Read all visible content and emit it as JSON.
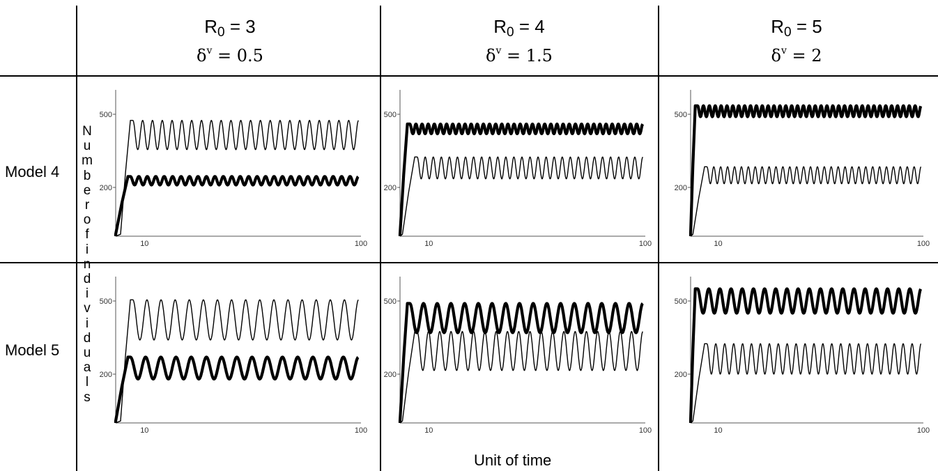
{
  "columns": [
    {
      "r0_label": "R",
      "r0_sub": "0",
      "r0_value": " = 3",
      "delta_sym": "δ",
      "delta_sup": "v",
      "delta_value": " = 0.5"
    },
    {
      "r0_label": "R",
      "r0_sub": "0",
      "r0_value": " = 4",
      "delta_sym": "δ",
      "delta_sup": "v",
      "delta_value": " = 1.5"
    },
    {
      "r0_label": "R",
      "r0_sub": "0",
      "r0_value": " = 5",
      "delta_sym": "δ",
      "delta_sup": "v",
      "delta_value": " = 2"
    }
  ],
  "rows": [
    "Model 4",
    "Model 5"
  ],
  "y_axis_label_letters": [
    "N",
    "u",
    "m",
    "b",
    "e",
    "r",
    "o",
    "f",
    "i",
    "n",
    "d",
    "i",
    "v",
    "i",
    "d",
    "u",
    "a",
    "l",
    "s"
  ],
  "x_axis_label": "Unit of time",
  "chart_data": [
    {
      "type": "line",
      "row": "Model 4",
      "r0": 3,
      "delta_v": 0.5,
      "ylim": [
        0,
        600
      ],
      "yticks": [
        200,
        500
      ],
      "xticks": [
        10,
        100
      ],
      "xlim": [
        0,
        100
      ],
      "grid": false,
      "series": [
        {
          "style": "thin",
          "cycles": 23,
          "max": 475,
          "min": 355,
          "rise_start": 2,
          "rise_end": 6
        },
        {
          "style": "thick",
          "cycles": 27,
          "max": 245,
          "min": 210,
          "rise_start": 0,
          "rise_end": 5
        }
      ]
    },
    {
      "type": "line",
      "row": "Model 4",
      "r0": 4,
      "delta_v": 1.5,
      "ylim": [
        0,
        600
      ],
      "yticks": [
        200,
        500
      ],
      "xticks": [
        10,
        100
      ],
      "xlim": [
        0,
        100
      ],
      "grid": false,
      "series": [
        {
          "style": "thin",
          "cycles": 28,
          "max": 325,
          "min": 235,
          "rise_start": 1,
          "rise_end": 6
        },
        {
          "style": "thick",
          "cycles": 38,
          "max": 460,
          "min": 420,
          "rise_start": 0,
          "rise_end": 3
        }
      ]
    },
    {
      "type": "line",
      "row": "Model 4",
      "r0": 5,
      "delta_v": 2,
      "ylim": [
        0,
        600
      ],
      "yticks": [
        200,
        500
      ],
      "xticks": [
        10,
        100
      ],
      "xlim": [
        0,
        100
      ],
      "grid": false,
      "series": [
        {
          "style": "thin",
          "cycles": 31,
          "max": 285,
          "min": 215,
          "rise_start": 1,
          "rise_end": 6
        },
        {
          "style": "thick",
          "cycles": 38,
          "max": 535,
          "min": 490,
          "rise_start": 0,
          "rise_end": 2
        }
      ]
    },
    {
      "type": "line",
      "row": "Model 5",
      "r0": 3,
      "delta_v": 0.5,
      "ylim": [
        0,
        600
      ],
      "yticks": [
        200,
        500
      ],
      "xticks": [
        10,
        100
      ],
      "xlim": [
        0,
        100
      ],
      "grid": false,
      "series": [
        {
          "style": "thin",
          "cycles": 16,
          "max": 505,
          "min": 340,
          "rise_start": 2,
          "rise_end": 6
        },
        {
          "style": "thick",
          "cycles": 15,
          "max": 270,
          "min": 180,
          "rise_start": 0,
          "rise_end": 5
        }
      ]
    },
    {
      "type": "line",
      "row": "Model 5",
      "r0": 4,
      "delta_v": 1.5,
      "ylim": [
        0,
        600
      ],
      "yticks": [
        200,
        500
      ],
      "xticks": [
        10,
        100
      ],
      "xlim": [
        0,
        100
      ],
      "grid": false,
      "series": [
        {
          "style": "thin",
          "cycles": 20,
          "max": 375,
          "min": 215,
          "rise_start": 1,
          "rise_end": 6
        },
        {
          "style": "thick",
          "cycles": 17,
          "max": 490,
          "min": 370,
          "rise_start": 0,
          "rise_end": 3
        }
      ]
    },
    {
      "type": "line",
      "row": "Model 5",
      "r0": 5,
      "delta_v": 2,
      "ylim": [
        0,
        600
      ],
      "yticks": [
        200,
        500
      ],
      "xticks": [
        10,
        100
      ],
      "xlim": [
        0,
        100
      ],
      "grid": false,
      "series": [
        {
          "style": "thin",
          "cycles": 24,
          "max": 325,
          "min": 200,
          "rise_start": 1,
          "rise_end": 6
        },
        {
          "style": "thick",
          "cycles": 20,
          "max": 550,
          "min": 450,
          "rise_start": 0,
          "rise_end": 2
        }
      ]
    }
  ]
}
